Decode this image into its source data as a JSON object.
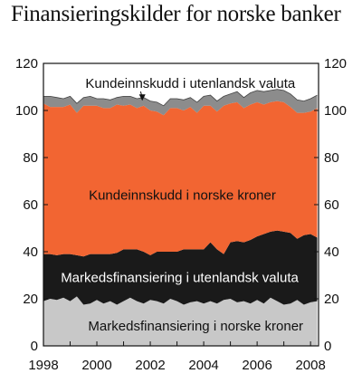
{
  "chart_data": {
    "type": "area",
    "stacked": true,
    "title": "Finansieringskilder for norske banker",
    "xlim": [
      1998,
      2008.3
    ],
    "ylim": [
      0,
      120
    ],
    "x_ticks": [
      1998,
      2000,
      2002,
      2004,
      2006,
      2008
    ],
    "y_ticks": [
      0,
      20,
      40,
      60,
      80,
      100,
      120
    ],
    "grid": false,
    "x": [
      1998.0,
      1998.25,
      1998.5,
      1998.75,
      1999.0,
      1999.25,
      1999.5,
      1999.75,
      2000.0,
      2000.25,
      2000.5,
      2000.75,
      2001.0,
      2001.25,
      2001.5,
      2001.75,
      2002.0,
      2002.25,
      2002.5,
      2002.75,
      2003.0,
      2003.25,
      2003.5,
      2003.75,
      2004.0,
      2004.25,
      2004.5,
      2004.75,
      2005.0,
      2005.25,
      2005.5,
      2005.75,
      2006.0,
      2006.25,
      2006.5,
      2006.75,
      2007.0,
      2007.25,
      2007.5,
      2007.75,
      2008.0,
      2008.25
    ],
    "series": [
      {
        "name": "Markedsfinansiering i norske kroner",
        "color": "#c8c8c8",
        "values": [
          19.0,
          20.0,
          19.5,
          20.5,
          19.0,
          21.0,
          17.5,
          18.0,
          19.5,
          18.0,
          19.0,
          17.5,
          19.0,
          20.5,
          19.0,
          18.0,
          19.5,
          19.0,
          18.0,
          20.0,
          19.0,
          17.5,
          18.5,
          19.0,
          18.0,
          19.0,
          18.0,
          19.5,
          20.0,
          18.5,
          19.0,
          18.0,
          19.5,
          18.0,
          20.5,
          19.0,
          17.5,
          18.0,
          19.5,
          17.5,
          18.5,
          19.0
        ]
      },
      {
        "name": "Markedsfinansiering i utenlandsk valuta",
        "color": "#1a1a1a",
        "values": [
          20.0,
          19.0,
          19.0,
          18.5,
          20.0,
          17.5,
          20.5,
          21.0,
          19.5,
          21.0,
          20.0,
          22.0,
          22.0,
          20.5,
          22.0,
          22.0,
          19.0,
          21.0,
          22.0,
          20.0,
          21.0,
          23.5,
          22.5,
          22.0,
          23.0,
          25.0,
          23.0,
          19.5,
          24.0,
          26.0,
          25.0,
          27.0,
          27.0,
          29.5,
          28.0,
          30.0,
          31.0,
          30.0,
          26.0,
          29.5,
          29.0,
          27.0
        ]
      },
      {
        "name": "Kundeinnskudd i norske kroner",
        "color": "#f26532",
        "values": [
          64.0,
          62.5,
          63.0,
          62.5,
          63.5,
          60.5,
          64.0,
          63.0,
          63.0,
          62.0,
          62.0,
          63.0,
          61.0,
          61.5,
          60.0,
          62.0,
          61.5,
          59.5,
          58.0,
          61.0,
          61.0,
          59.0,
          60.5,
          58.0,
          61.0,
          58.0,
          58.5,
          63.0,
          59.0,
          59.0,
          57.0,
          57.5,
          57.0,
          55.0,
          55.0,
          55.0,
          55.0,
          53.5,
          53.5,
          52.0,
          52.0,
          55.0
        ]
      },
      {
        "name": "Kundeinnskudd i utenlandsk valuta",
        "color": "#8c8c8c",
        "values": [
          3.0,
          4.5,
          4.0,
          3.5,
          3.5,
          4.0,
          3.5,
          4.0,
          3.0,
          4.0,
          3.5,
          3.0,
          4.0,
          3.5,
          4.0,
          3.5,
          4.0,
          4.0,
          4.0,
          4.0,
          4.0,
          4.5,
          4.0,
          4.5,
          4.0,
          4.5,
          4.5,
          4.0,
          4.0,
          4.5,
          4.5,
          5.0,
          5.0,
          5.5,
          5.0,
          5.0,
          5.0,
          5.5,
          5.5,
          5.0,
          5.5,
          5.5
        ]
      }
    ],
    "annotations": [
      {
        "text": "Kundeinnskudd i utenlandsk valuta",
        "color": "#111111",
        "x": 2003.5,
        "y": 111.5,
        "arrow_to": [
          2001.7,
          104.5
        ]
      },
      {
        "text": "Kundeinnskudd i norske kroner",
        "color": "#111111",
        "x": 2003.2,
        "y": 64
      },
      {
        "text": "Markedsfinansiering i utenlandsk valuta",
        "color": "#ffffff",
        "x": 2003.1,
        "y": 29
      },
      {
        "text": "Markedsfinansiering i norske kroner",
        "color": "#111111",
        "x": 2003.7,
        "y": 8.5
      }
    ]
  }
}
